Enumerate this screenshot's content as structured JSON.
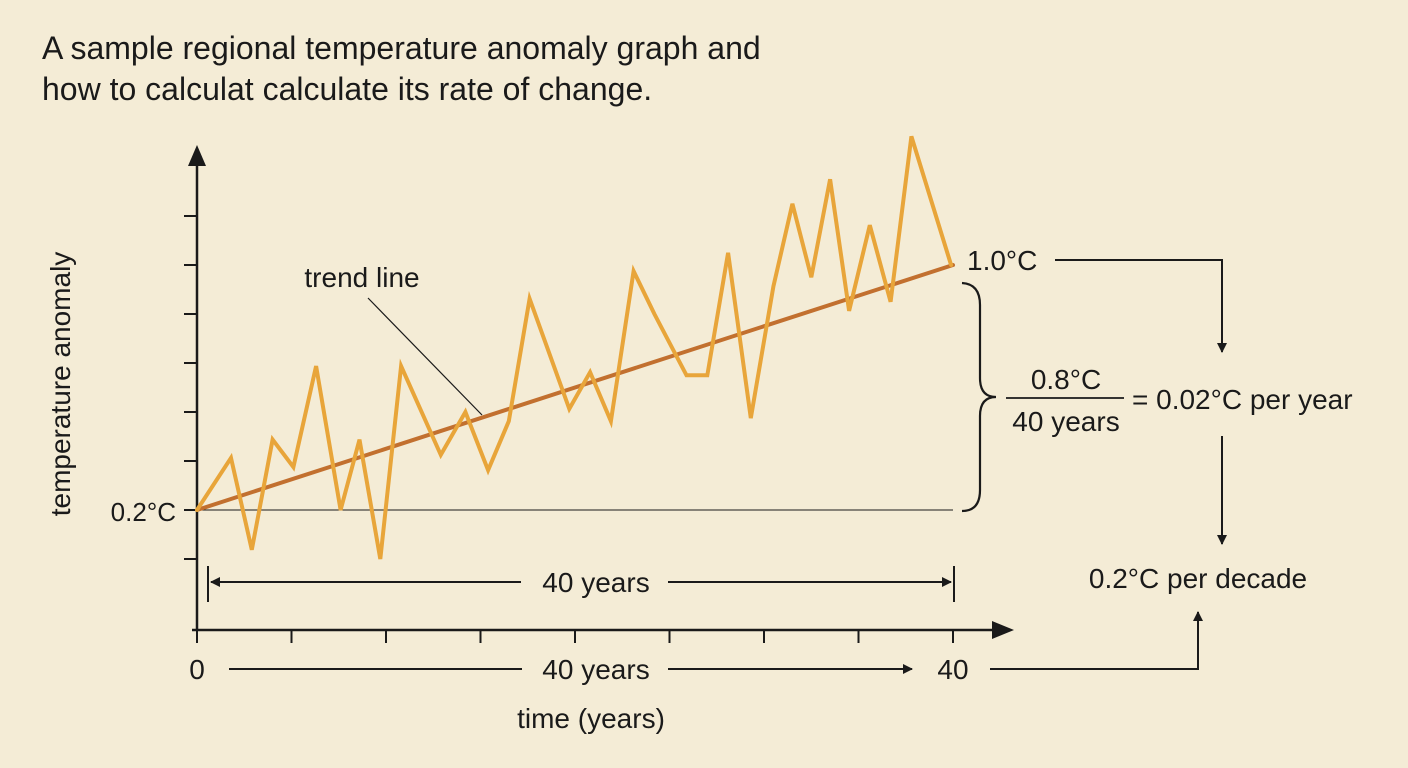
{
  "title_lines": [
    "A sample regional temperature anomaly graph and",
    "how to calculat calculate its rate of change."
  ],
  "chart_data": {
    "type": "line",
    "title": "A sample regional temperature anomaly graph and how to calculat calculate its rate of change.",
    "xlabel": "time (years)",
    "ylabel": "temperature anomaly",
    "xlim": [
      0,
      40
    ],
    "ylim": [
      0.0,
      1.45
    ],
    "x_tick_labels": [
      "0",
      "40"
    ],
    "y_tick_labels": [
      "0.2°C"
    ],
    "series": [
      {
        "values": [
          [
            0,
            0.2
          ],
          [
            1.8,
            0.37
          ],
          [
            2.9,
            0.07
          ],
          [
            4.0,
            0.43
          ],
          [
            5.1,
            0.34
          ],
          [
            6.3,
            0.67
          ],
          [
            7.6,
            0.2
          ],
          [
            8.6,
            0.43
          ],
          [
            9.7,
            0.04
          ],
          [
            10.8,
            0.67
          ],
          [
            12.9,
            0.38
          ],
          [
            14.2,
            0.52
          ],
          [
            15.4,
            0.33
          ],
          [
            16.5,
            0.49
          ],
          [
            17.6,
            0.89
          ],
          [
            19.7,
            0.53
          ],
          [
            20.8,
            0.65
          ],
          [
            21.9,
            0.49
          ],
          [
            23.1,
            0.98
          ],
          [
            24.2,
            0.84
          ],
          [
            25.9,
            0.64
          ],
          [
            27.0,
            0.64
          ],
          [
            28.1,
            1.04
          ],
          [
            29.3,
            0.5
          ],
          [
            30.5,
            0.93
          ],
          [
            31.5,
            1.2
          ],
          [
            32.5,
            0.96
          ],
          [
            33.5,
            1.28
          ],
          [
            34.5,
            0.85
          ],
          [
            35.6,
            1.13
          ],
          [
            36.7,
            0.88
          ],
          [
            37.8,
            1.42
          ],
          [
            39.9,
            1.0
          ]
        ]
      },
      {
        "name": "trend line",
        "values": [
          [
            0,
            0.2
          ],
          [
            40,
            1.0
          ]
        ]
      }
    ],
    "annotations": {
      "trend_label": "trend line",
      "start_value": "0.2°C",
      "end_value": "1.0°C",
      "span_label": "40 years",
      "axis_span_label": "40 years",
      "fraction_numerator": "0.8°C",
      "fraction_denominator": "40 years",
      "rate_per_year": "= 0.02°C per year",
      "rate_per_decade": "0.2°C per decade"
    },
    "colors": {
      "data_line": "#e8a53a",
      "trend_line": "#c2702f",
      "axis": "#1a1a1a",
      "background": "#f4ecd6"
    }
  }
}
